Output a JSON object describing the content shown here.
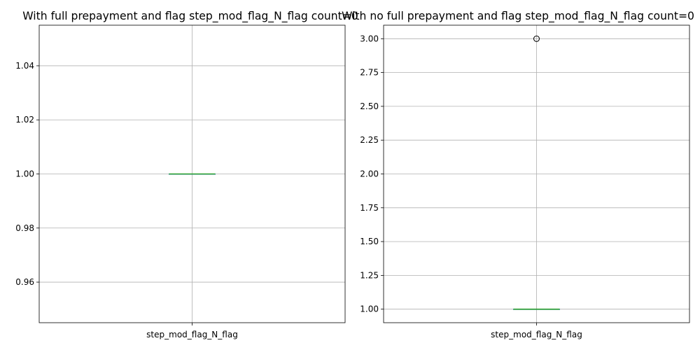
{
  "chart_data": [
    {
      "type": "box",
      "title": "With full prepayment and flag step_mod_flag_N_flag count=0",
      "categories": [
        "step_mod_flag_N_flag"
      ],
      "ylim": [
        0.945,
        1.055
      ],
      "yticks": [
        0.96,
        0.98,
        1.0,
        1.02,
        1.04
      ],
      "ytick_labels": [
        "0.96",
        "0.98",
        "1.00",
        "1.02",
        "1.04"
      ],
      "grid": true,
      "boxes": [
        {
          "name": "step_mod_flag_N_flag",
          "min": 1.0,
          "q1": 1.0,
          "median": 1.0,
          "q3": 1.0,
          "max": 1.0,
          "outliers": []
        }
      ]
    },
    {
      "type": "box",
      "title": "With no full prepayment and flag step_mod_flag_N_flag count=0",
      "categories": [
        "step_mod_flag_N_flag"
      ],
      "ylim": [
        0.9,
        3.1
      ],
      "yticks": [
        1.0,
        1.25,
        1.5,
        1.75,
        2.0,
        2.25,
        2.5,
        2.75,
        3.0
      ],
      "ytick_labels": [
        "1.00",
        "1.25",
        "1.50",
        "1.75",
        "2.00",
        "2.25",
        "2.50",
        "2.75",
        "3.00"
      ],
      "grid": true,
      "boxes": [
        {
          "name": "step_mod_flag_N_flag",
          "min": 1.0,
          "q1": 1.0,
          "median": 1.0,
          "q3": 1.0,
          "max": 1.0,
          "outliers": [
            3.0
          ]
        }
      ]
    }
  ],
  "colors": {
    "box": "#1f77b4",
    "median": "#2ca02c",
    "grid": "#b0b0b0",
    "axes": "#000000",
    "outlier_edge": "#000000"
  }
}
